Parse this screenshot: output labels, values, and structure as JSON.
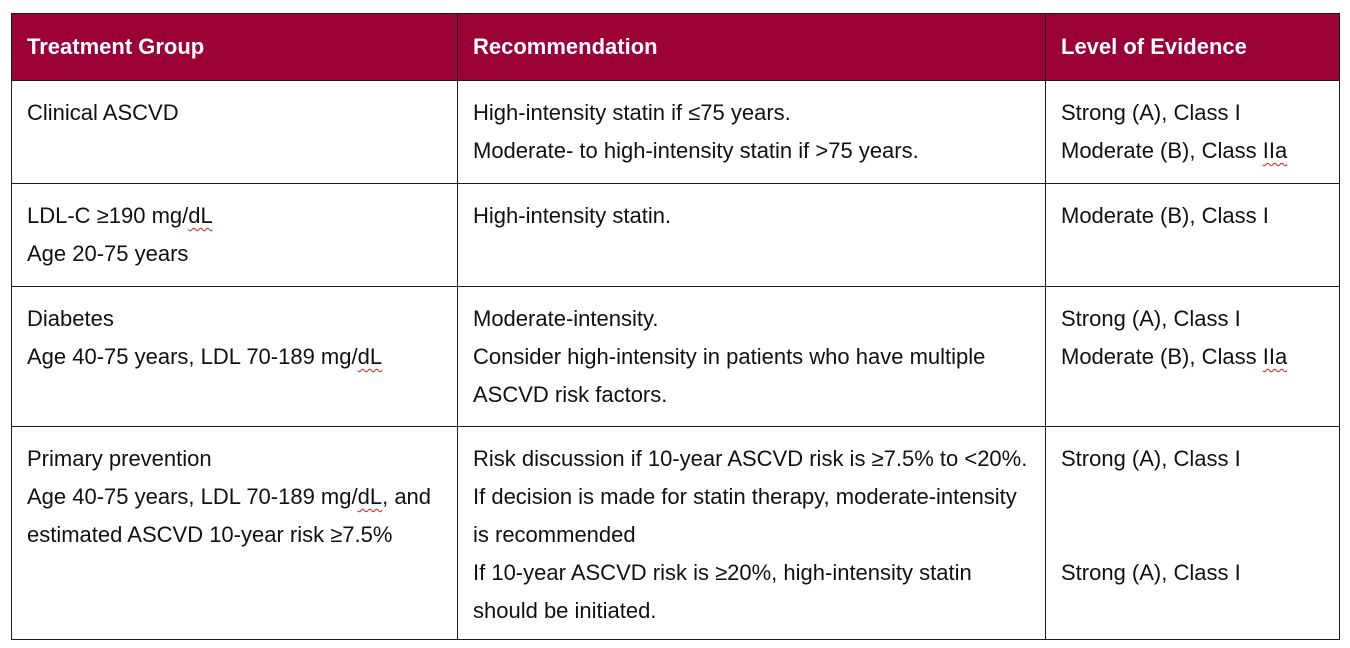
{
  "table": {
    "headers": [
      "Treatment Group",
      "Recommendation",
      "Level of Evidence"
    ],
    "rows": [
      {
        "group": [
          "Clinical ASCVD"
        ],
        "recommendation": [
          "High-intensity statin if ≤75 years.",
          "Moderate- to high-intensity statin if >75 years."
        ],
        "evidence": [
          "Strong (A), Class I",
          "Moderate (B), Class IIa"
        ]
      },
      {
        "group": [
          "LDL-C ≥190 mg/dL",
          "Age 20-75 years"
        ],
        "recommendation": [
          "High-intensity statin."
        ],
        "evidence": [
          "Moderate (B), Class I"
        ]
      },
      {
        "group": [
          "Diabetes",
          "Age 40-75 years, LDL 70-189 mg/dL"
        ],
        "recommendation": [
          "Moderate-intensity.",
          "Consider high-intensity in patients who have multiple ASCVD risk factors."
        ],
        "evidence": [
          "Strong (A), Class I",
          "Moderate (B), Class IIa"
        ]
      },
      {
        "group": [
          "Primary prevention",
          "Age 40-75 years, LDL 70-189 mg/dL, and estimated ASCVD 10-year risk ≥7.5%"
        ],
        "recommendation": [
          "Risk discussion if 10-year ASCVD risk is ≥7.5% to <20%. If decision is made for statin therapy, moderate-intensity is recommended",
          "If 10-year ASCVD risk is ≥20%, high-intensity statin should be initiated."
        ],
        "evidence": [
          "Strong (A), Class I",
          "Strong (A), Class I"
        ]
      }
    ]
  }
}
